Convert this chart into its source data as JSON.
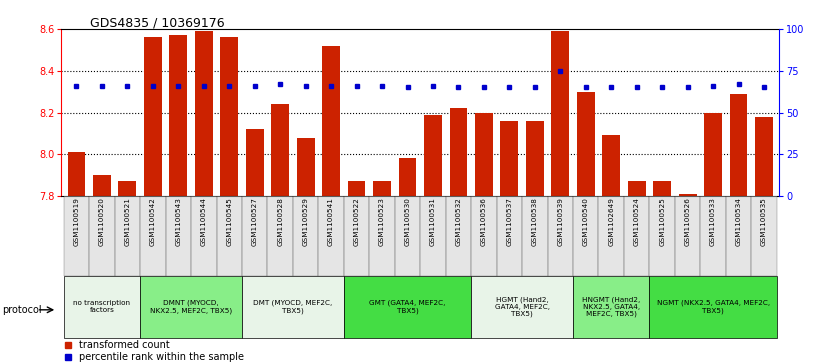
{
  "title": "GDS4835 / 10369176",
  "samples": [
    "GSM1100519",
    "GSM1100520",
    "GSM1100521",
    "GSM1100542",
    "GSM1100543",
    "GSM1100544",
    "GSM1100545",
    "GSM1100527",
    "GSM1100528",
    "GSM1100529",
    "GSM1100541",
    "GSM1100522",
    "GSM1100523",
    "GSM1100530",
    "GSM1100531",
    "GSM1100532",
    "GSM1100536",
    "GSM1100537",
    "GSM1100538",
    "GSM1100539",
    "GSM1100540",
    "GSM1102649",
    "GSM1100524",
    "GSM1100525",
    "GSM1100526",
    "GSM1100533",
    "GSM1100534",
    "GSM1100535"
  ],
  "bar_values": [
    8.01,
    7.9,
    7.87,
    8.56,
    8.57,
    8.59,
    8.56,
    8.12,
    8.24,
    8.08,
    8.52,
    7.87,
    7.87,
    7.98,
    8.19,
    8.22,
    8.2,
    8.16,
    8.16,
    8.59,
    8.3,
    8.09,
    7.87,
    7.87,
    7.81,
    8.2,
    8.29,
    8.18
  ],
  "percentile_values": [
    66,
    66,
    66,
    66,
    66,
    66,
    66,
    66,
    67,
    66,
    66,
    66,
    66,
    65,
    66,
    65,
    65,
    65,
    65,
    75,
    65,
    65,
    65,
    65,
    65,
    66,
    67,
    65
  ],
  "ylim_left": [
    7.8,
    8.6
  ],
  "ylim_right": [
    0,
    100
  ],
  "yticks_left": [
    7.8,
    8.0,
    8.2,
    8.4,
    8.6
  ],
  "yticks_right": [
    0,
    25,
    50,
    75,
    100
  ],
  "bar_color": "#cc2200",
  "dot_color": "#0000cc",
  "groups": [
    {
      "label": "no transcription\nfactors",
      "start": 0,
      "end": 3,
      "color": "#e8f4e8"
    },
    {
      "label": "DMNT (MYOCD,\nNKX2.5, MEF2C, TBX5)",
      "start": 3,
      "end": 7,
      "color": "#88ee88"
    },
    {
      "label": "DMT (MYOCD, MEF2C,\nTBX5)",
      "start": 7,
      "end": 11,
      "color": "#e8f4e8"
    },
    {
      "label": "GMT (GATA4, MEF2C,\nTBX5)",
      "start": 11,
      "end": 16,
      "color": "#44dd44"
    },
    {
      "label": "HGMT (Hand2,\nGATA4, MEF2C,\nTBX5)",
      "start": 16,
      "end": 20,
      "color": "#e8f4e8"
    },
    {
      "label": "HNGMT (Hand2,\nNKX2.5, GATA4,\nMEF2C, TBX5)",
      "start": 20,
      "end": 23,
      "color": "#88ee88"
    },
    {
      "label": "NGMT (NKX2.5, GATA4, MEF2C,\nTBX5)",
      "start": 23,
      "end": 28,
      "color": "#44dd44"
    }
  ],
  "legend_bar_label": "transformed count",
  "legend_dot_label": "percentile rank within the sample",
  "protocol_label": "protocol"
}
